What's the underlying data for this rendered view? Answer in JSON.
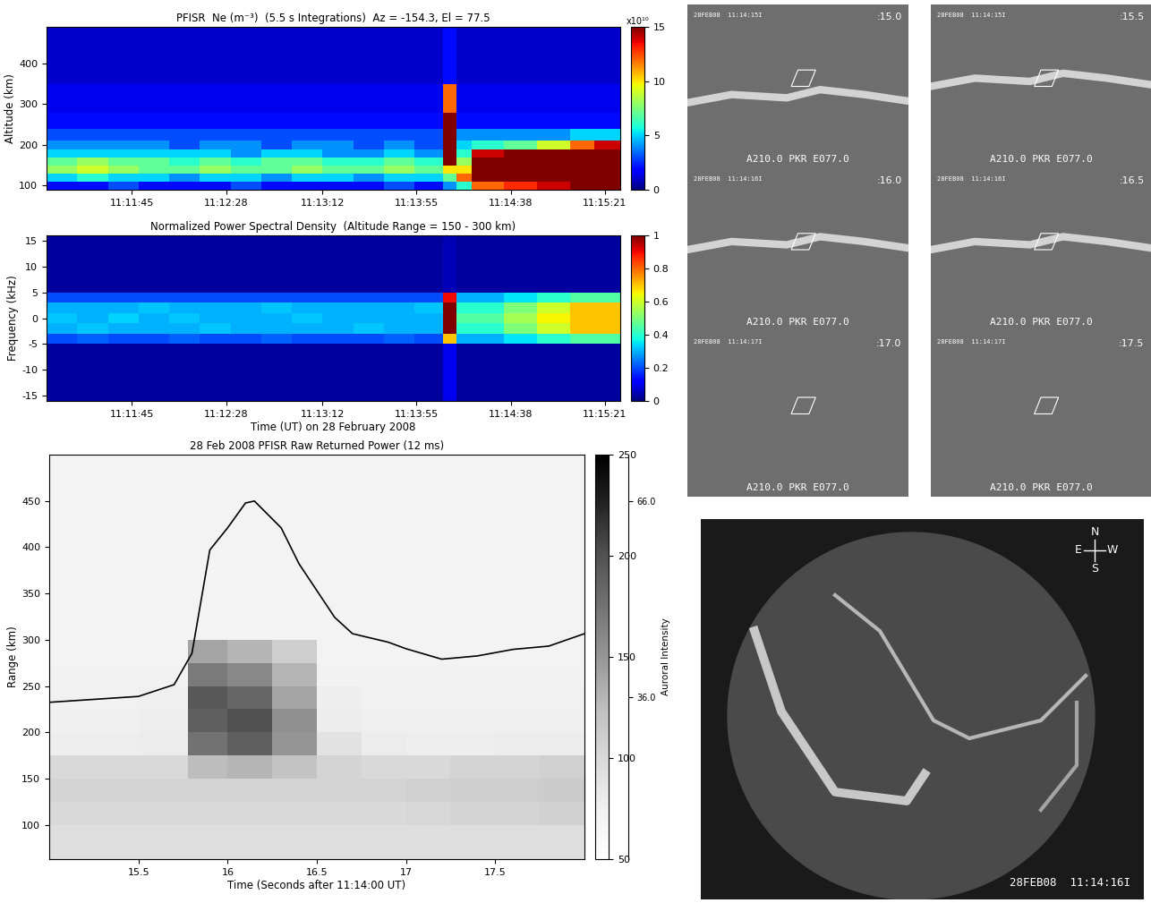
{
  "chart_data": [
    {
      "type": "heatmap",
      "title": "PFISR  Ne (m⁻³)  (5.5 s Integrations)  Az = -154.3, El = 77.5",
      "y_label": "Altitude (km)",
      "x_edges": [
        666,
        680,
        694,
        708,
        722,
        736,
        750,
        764,
        778,
        792,
        806,
        820,
        834,
        847,
        853,
        860,
        875,
        890,
        905,
        916,
        928
      ],
      "y_edges": [
        90,
        110,
        130,
        150,
        170,
        190,
        210,
        240,
        280,
        350,
        490
      ],
      "cells": [
        [
          2,
          2,
          3,
          2,
          2,
          2,
          3,
          2,
          2,
          2,
          2,
          3,
          2,
          4,
          6,
          12,
          13,
          14,
          15,
          15
        ],
        [
          5,
          6,
          5,
          5,
          4,
          5,
          5,
          4,
          5,
          5,
          4,
          5,
          5,
          7,
          12,
          15,
          15,
          15,
          15,
          15
        ],
        [
          8,
          9,
          8,
          7,
          7,
          8,
          7,
          7,
          8,
          7,
          7,
          8,
          7,
          10,
          10,
          15,
          15,
          15,
          15,
          15
        ],
        [
          7,
          8,
          7,
          7,
          6,
          7,
          6,
          7,
          7,
          6,
          6,
          7,
          6,
          15,
          8,
          15,
          15,
          15,
          15,
          15
        ],
        [
          5,
          5,
          5,
          5,
          5,
          5,
          4,
          5,
          5,
          4,
          4,
          5,
          4,
          15,
          6,
          14,
          15,
          15,
          15,
          15
        ],
        [
          4,
          4,
          4,
          4,
          3,
          4,
          4,
          3,
          4,
          4,
          3,
          4,
          3,
          15,
          5,
          6,
          7,
          9,
          12,
          14
        ],
        [
          3,
          3,
          3,
          3,
          3,
          3,
          3,
          3,
          3,
          3,
          3,
          3,
          3,
          15,
          4,
          4,
          4,
          4,
          5,
          5
        ],
        [
          2,
          2,
          2,
          2,
          2,
          2,
          2,
          2,
          2,
          2,
          2,
          2,
          2,
          15,
          2,
          2,
          2,
          2,
          2,
          2
        ],
        [
          1.5,
          1.5,
          1.5,
          1.5,
          1.5,
          1.5,
          1.5,
          1.5,
          1.5,
          1.5,
          1.5,
          1.5,
          1.5,
          12,
          1.5,
          1.5,
          1.5,
          1.5,
          1.5,
          1.5
        ],
        [
          1,
          1,
          1,
          1,
          1,
          1,
          1,
          1,
          1,
          1,
          1,
          1,
          1,
          2,
          1,
          1,
          1,
          1,
          1,
          1
        ]
      ],
      "xlim": [
        666,
        928
      ],
      "xticks": [
        {
          "value": 705,
          "label": "11:11:45"
        },
        {
          "value": 748,
          "label": "11:12:28"
        },
        {
          "value": 792,
          "label": "11:13:12"
        },
        {
          "value": 835,
          "label": "11:13:55"
        },
        {
          "value": 878,
          "label": "11:14:38"
        },
        {
          "value": 921,
          "label": "11:15:21"
        }
      ],
      "ylim": [
        90,
        490
      ],
      "yticks": [
        100,
        200,
        300,
        400
      ],
      "color_range": [
        0,
        15
      ],
      "color_ticks": [
        0,
        5,
        10,
        15
      ],
      "color_label": "x10¹⁰"
    },
    {
      "type": "heatmap",
      "title": "Normalized Power Spectral Density  (Altitude Range = 150 - 300 km)",
      "x_label": "Time (UT) on 28 February 2008",
      "y_label": "Frequency (kHz)",
      "x_edges": [
        666,
        680,
        694,
        708,
        722,
        736,
        750,
        764,
        778,
        792,
        806,
        820,
        834,
        847,
        853,
        860,
        875,
        890,
        905,
        916,
        928
      ],
      "y_edges": [
        -16,
        -5,
        -3,
        -1,
        1,
        3,
        5,
        16
      ],
      "cells": [
        [
          0.03,
          0.03,
          0.03,
          0.03,
          0.03,
          0.03,
          0.03,
          0.03,
          0.03,
          0.03,
          0.03,
          0.03,
          0.03,
          0.1,
          0.03,
          0.03,
          0.03,
          0.03,
          0.03,
          0.03
        ],
        [
          0.2,
          0.22,
          0.2,
          0.2,
          0.22,
          0.2,
          0.2,
          0.22,
          0.2,
          0.2,
          0.2,
          0.22,
          0.2,
          0.7,
          0.3,
          0.3,
          0.35,
          0.4,
          0.45,
          0.45
        ],
        [
          0.3,
          0.32,
          0.3,
          0.3,
          0.3,
          0.32,
          0.3,
          0.3,
          0.3,
          0.3,
          0.32,
          0.3,
          0.3,
          1,
          0.4,
          0.4,
          0.5,
          0.6,
          0.7,
          0.7
        ],
        [
          0.32,
          0.3,
          0.33,
          0.3,
          0.32,
          0.3,
          0.3,
          0.3,
          0.32,
          0.3,
          0.3,
          0.3,
          0.3,
          1,
          0.45,
          0.45,
          0.55,
          0.65,
          0.7,
          0.7
        ],
        [
          0.3,
          0.3,
          0.3,
          0.32,
          0.3,
          0.3,
          0.3,
          0.32,
          0.3,
          0.3,
          0.3,
          0.3,
          0.32,
          1,
          0.4,
          0.4,
          0.5,
          0.6,
          0.7,
          0.7
        ],
        [
          0.2,
          0.2,
          0.2,
          0.2,
          0.2,
          0.2,
          0.2,
          0.2,
          0.2,
          0.2,
          0.2,
          0.2,
          0.2,
          0.9,
          0.3,
          0.3,
          0.35,
          0.4,
          0.45,
          0.45
        ],
        [
          0.03,
          0.03,
          0.03,
          0.03,
          0.03,
          0.03,
          0.03,
          0.03,
          0.03,
          0.03,
          0.03,
          0.03,
          0.03,
          0.05,
          0.03,
          0.03,
          0.03,
          0.03,
          0.03,
          0.03
        ]
      ],
      "xlim": [
        666,
        928
      ],
      "xticks": [
        {
          "value": 705,
          "label": "11:11:45"
        },
        {
          "value": 748,
          "label": "11:12:28"
        },
        {
          "value": 792,
          "label": "11:13:12"
        },
        {
          "value": 835,
          "label": "11:13:55"
        },
        {
          "value": 878,
          "label": "11:14:38"
        },
        {
          "value": 921,
          "label": "11:15:21"
        }
      ],
      "ylim": [
        -16,
        16
      ],
      "yticks": [
        -15,
        -10,
        -5,
        0,
        5,
        10,
        15
      ],
      "color_range": [
        0,
        1
      ],
      "color_ticks": [
        0,
        0.2,
        0.4,
        0.6,
        0.8,
        1
      ]
    },
    {
      "type": "heatmap",
      "title": "28 Feb 2008 PFISR Raw Returned Power (12 ms)",
      "x_label": "Time (Seconds after 11:14:00 UT)",
      "y_label": "Range (km)",
      "x_edges": [
        15.0,
        15.25,
        15.5,
        15.78,
        16.0,
        16.25,
        16.5,
        16.75,
        17.0,
        17.25,
        17.5,
        17.75,
        18.0
      ],
      "y_edges": [
        63,
        100,
        125,
        150,
        175,
        200,
        225,
        250,
        275,
        300,
        500
      ],
      "cells": [
        [
          95,
          95,
          95,
          95,
          95,
          95,
          95,
          95,
          95,
          95,
          95,
          95
        ],
        [
          100,
          100,
          100,
          100,
          100,
          100,
          100,
          100,
          102,
          105,
          105,
          108
        ],
        [
          105,
          105,
          105,
          105,
          105,
          105,
          105,
          105,
          108,
          110,
          110,
          112
        ],
        [
          100,
          100,
          100,
          125,
          130,
          120,
          105,
          100,
          100,
          105,
          105,
          108
        ],
        [
          78,
          78,
          80,
          175,
          190,
          150,
          90,
          80,
          78,
          78,
          80,
          80
        ],
        [
          75,
          75,
          78,
          190,
          200,
          155,
          80,
          76,
          75,
          75,
          75,
          75
        ],
        [
          74,
          74,
          76,
          195,
          185,
          140,
          78,
          74,
          74,
          74,
          74,
          74
        ],
        [
          72,
          72,
          72,
          170,
          160,
          130,
          72,
          72,
          72,
          72,
          72,
          72
        ],
        [
          70,
          70,
          70,
          140,
          130,
          110,
          70,
          70,
          70,
          70,
          70,
          70
        ],
        [
          70,
          70,
          70,
          70,
          70,
          70,
          70,
          70,
          70,
          70,
          70,
          70
        ]
      ],
      "xlim": [
        15.0,
        18.0
      ],
      "xticks": [
        15.5,
        16,
        16.5,
        17,
        17.5
      ],
      "ylim": [
        63,
        500
      ],
      "yticks": [
        100,
        150,
        200,
        250,
        300,
        350,
        400,
        450
      ],
      "color_range": [
        50,
        250
      ],
      "color_ticks": [
        50,
        100,
        150,
        200,
        250
      ],
      "series": [
        {
          "name": "Auroral Intensity",
          "type": "line",
          "color": "#000000",
          "axis": "y2",
          "x": [
            15.0,
            15.5,
            15.7,
            15.8,
            15.9,
            16.0,
            16.1,
            16.15,
            16.3,
            16.4,
            16.5,
            16.6,
            16.7,
            16.9,
            17.0,
            17.2,
            17.4,
            17.6,
            17.8,
            18.0
          ],
          "values": [
            35.2,
            36.1,
            37.9,
            42.7,
            58.5,
            61.9,
            65.7,
            66.0,
            61.9,
            56.4,
            52.3,
            48.2,
            45.7,
            44.4,
            43.4,
            41.8,
            42.3,
            43.3,
            43.8,
            45.7
          ]
        }
      ],
      "y2lim": [
        11.2,
        73.1
      ],
      "y2ticks": [
        {
          "value": 36,
          "label": "36.0"
        },
        {
          "value": 66,
          "label": "66.0"
        }
      ]
    }
  ],
  "images": {
    "panels": [
      {
        "header": "28FEB08  11:14:15I",
        "time": ":15.0",
        "footer": "A210.0 PKR E077.0"
      },
      {
        "header": "28FEB08  11:14:15I",
        "time": ":15.5",
        "footer": "A210.0 PKR E077.0"
      },
      {
        "header": "28FEB08  11:14:16I",
        "time": ":16.0",
        "footer": "A210.0 PKR E077.0"
      },
      {
        "header": "28FEB08  11:14:16I",
        "time": ":16.5",
        "footer": "A210.0 PKR E077.0"
      },
      {
        "header": "28FEB08  11:14:17I",
        "time": ":17.0",
        "footer": "A210.0 PKR E077.0"
      },
      {
        "header": "28FEB08  11:14:17I",
        "time": ":17.5",
        "footer": "A210.0 PKR E077.0"
      }
    ],
    "allsky": {
      "compass": [
        "N",
        "E",
        "W",
        "S"
      ],
      "stamp": "28FEB08  11:14:16I"
    }
  }
}
